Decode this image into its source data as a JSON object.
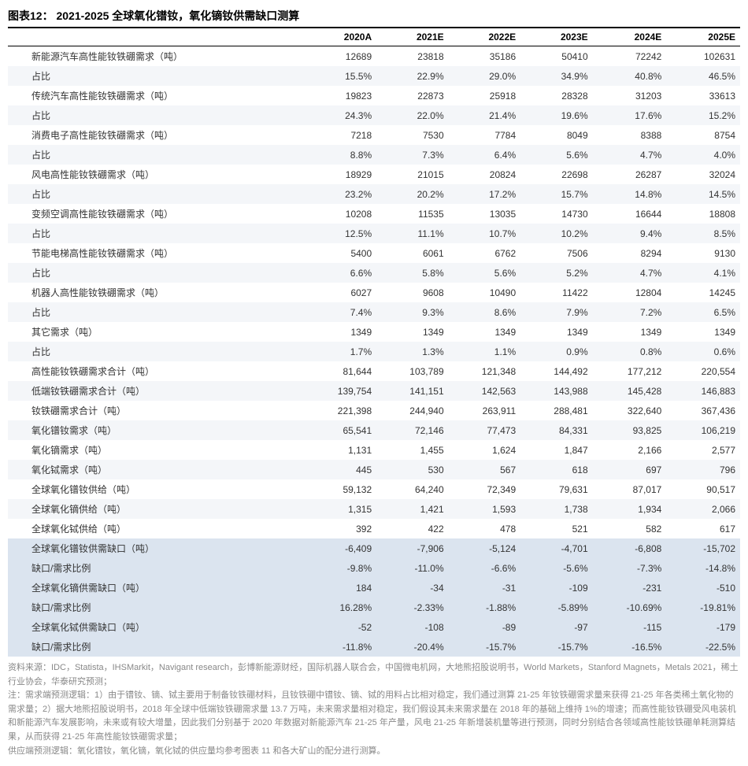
{
  "title": "图表12： 2021-2025 全球氧化镨钕，氧化镝钕供需缺口测算",
  "columns": [
    "",
    "2020A",
    "2021E",
    "2022E",
    "2023E",
    "2024E",
    "2025E"
  ],
  "rows": [
    {
      "label": "新能源汽车高性能钕铁硼需求（吨）",
      "v": [
        "12689",
        "23818",
        "35186",
        "50410",
        "72242",
        "102631"
      ],
      "stripe": false
    },
    {
      "label": "占比",
      "v": [
        "15.5%",
        "22.9%",
        "29.0%",
        "34.9%",
        "40.8%",
        "46.5%"
      ],
      "stripe": true
    },
    {
      "label": "传统汽车高性能钕铁硼需求（吨）",
      "v": [
        "19823",
        "22873",
        "25918",
        "28328",
        "31203",
        "33613"
      ],
      "stripe": false
    },
    {
      "label": "占比",
      "v": [
        "24.3%",
        "22.0%",
        "21.4%",
        "19.6%",
        "17.6%",
        "15.2%"
      ],
      "stripe": true
    },
    {
      "label": "消费电子高性能钕铁硼需求（吨）",
      "v": [
        "7218",
        "7530",
        "7784",
        "8049",
        "8388",
        "8754"
      ],
      "stripe": false
    },
    {
      "label": "占比",
      "v": [
        "8.8%",
        "7.3%",
        "6.4%",
        "5.6%",
        "4.7%",
        "4.0%"
      ],
      "stripe": true
    },
    {
      "label": "风电高性能钕铁硼需求（吨）",
      "v": [
        "18929",
        "21015",
        "20824",
        "22698",
        "26287",
        "32024"
      ],
      "stripe": false
    },
    {
      "label": "占比",
      "v": [
        "23.2%",
        "20.2%",
        "17.2%",
        "15.7%",
        "14.8%",
        "14.5%"
      ],
      "stripe": true
    },
    {
      "label": "变频空调高性能钕铁硼需求（吨）",
      "v": [
        "10208",
        "11535",
        "13035",
        "14730",
        "16644",
        "18808"
      ],
      "stripe": false
    },
    {
      "label": "占比",
      "v": [
        "12.5%",
        "11.1%",
        "10.7%",
        "10.2%",
        "9.4%",
        "8.5%"
      ],
      "stripe": true
    },
    {
      "label": "节能电梯高性能钕铁硼需求（吨）",
      "v": [
        "5400",
        "6061",
        "6762",
        "7506",
        "8294",
        "9130"
      ],
      "stripe": false
    },
    {
      "label": "占比",
      "v": [
        "6.6%",
        "5.8%",
        "5.6%",
        "5.2%",
        "4.7%",
        "4.1%"
      ],
      "stripe": true
    },
    {
      "label": "机器人高性能钕铁硼需求（吨）",
      "v": [
        "6027",
        "9608",
        "10490",
        "11422",
        "12804",
        "14245"
      ],
      "stripe": false
    },
    {
      "label": "占比",
      "v": [
        "7.4%",
        "9.3%",
        "8.6%",
        "7.9%",
        "7.2%",
        "6.5%"
      ],
      "stripe": true
    },
    {
      "label": "其它需求（吨）",
      "v": [
        "1349",
        "1349",
        "1349",
        "1349",
        "1349",
        "1349"
      ],
      "stripe": false
    },
    {
      "label": "占比",
      "v": [
        "1.7%",
        "1.3%",
        "1.1%",
        "0.9%",
        "0.8%",
        "0.6%"
      ],
      "stripe": true
    },
    {
      "label": "高性能钕铁硼需求合计（吨）",
      "v": [
        "81,644",
        "103,789",
        "121,348",
        "144,492",
        "177,212",
        "220,554"
      ],
      "stripe": false
    },
    {
      "label": "低端钕铁硼需求合计（吨）",
      "v": [
        "139,754",
        "141,151",
        "142,563",
        "143,988",
        "145,428",
        "146,883"
      ],
      "stripe": true
    },
    {
      "label": "钕铁硼需求合计（吨）",
      "v": [
        "221,398",
        "244,940",
        "263,911",
        "288,481",
        "322,640",
        "367,436"
      ],
      "stripe": false
    },
    {
      "label": "氧化镨钕需求（吨）",
      "v": [
        "65,541",
        "72,146",
        "77,473",
        "84,331",
        "93,825",
        "106,219"
      ],
      "stripe": true
    },
    {
      "label": "氧化镝需求（吨）",
      "v": [
        "1,131",
        "1,455",
        "1,624",
        "1,847",
        "2,166",
        "2,577"
      ],
      "stripe": false
    },
    {
      "label": "氧化铽需求（吨）",
      "v": [
        "445",
        "530",
        "567",
        "618",
        "697",
        "796"
      ],
      "stripe": true
    },
    {
      "label": "全球氧化镨钕供给（吨）",
      "v": [
        "59,132",
        "64,240",
        "72,349",
        "79,631",
        "87,017",
        "90,517"
      ],
      "stripe": false
    },
    {
      "label": "全球氧化镝供给（吨）",
      "v": [
        "1,315",
        "1,421",
        "1,593",
        "1,738",
        "1,934",
        "2,066"
      ],
      "stripe": true
    },
    {
      "label": "全球氧化铽供给（吨）",
      "v": [
        "392",
        "422",
        "478",
        "521",
        "582",
        "617"
      ],
      "stripe": false
    },
    {
      "label": "全球氧化镨钕供需缺口（吨）",
      "v": [
        "-6,409",
        "-7,906",
        "-5,124",
        "-4,701",
        "-6,808",
        "-15,702"
      ],
      "highlight": true
    },
    {
      "label": "缺口/需求比例",
      "v": [
        "-9.8%",
        "-11.0%",
        "-6.6%",
        "-5.6%",
        "-7.3%",
        "-14.8%"
      ],
      "highlight": true
    },
    {
      "label": "全球氧化镝供需缺口（吨）",
      "v": [
        "184",
        "-34",
        "-31",
        "-109",
        "-231",
        "-510"
      ],
      "highlight": true
    },
    {
      "label": "缺口/需求比例",
      "v": [
        "16.28%",
        "-2.33%",
        "-1.88%",
        "-5.89%",
        "-10.69%",
        "-19.81%"
      ],
      "highlight": true
    },
    {
      "label": "全球氧化铽供需缺口（吨）",
      "v": [
        "-52",
        "-108",
        "-89",
        "-97",
        "-115",
        "-179"
      ],
      "highlight": true
    },
    {
      "label": "缺口/需求比例",
      "v": [
        "-11.8%",
        "-20.4%",
        "-15.7%",
        "-15.7%",
        "-16.5%",
        "-22.5%"
      ],
      "highlight": true
    }
  ],
  "footnotes": [
    "资料来源：IDC，Statista，IHSMarkit，Navigant research，彭博新能源财经，国际机器人联合会，中国微电机网，大地熊招股说明书，World Markets，Stanford Magnets，Metals 2021，稀土行业协会，华泰研究预测；",
    "注：需求端预测逻辑：1）由于镨钕、镝、铽主要用于制备钕铁硼材料，且钕铁硼中镨钕、镝、铽的用料占比相对稳定，我们通过测算 21-25 年钕铁硼需求量来获得 21-25 年各类稀土氧化物的需求量；2）据大地熊招股说明书，2018 年全球中低端钕铁硼需求量 13.7 万吨，未来需求量相对稳定，我们假设其未来需求量在 2018 年的基础上维持 1%的增速；而高性能钕铁硼受风电装机和新能源汽车发展影响，未来或有较大增量，因此我们分别基于 2020 年数据对新能源汽车 21-25 年产量，风电 21-25 年新增装机量等进行预测，同时分别结合各领域高性能钕铁硼单耗测算结果，从而获得 21-25 年高性能钕铁硼需求量；",
    "供应端预测逻辑：氧化镨钕，氧化镝，氧化铽的供应量均参考图表 11 和各大矿山的配分进行测算。"
  ]
}
